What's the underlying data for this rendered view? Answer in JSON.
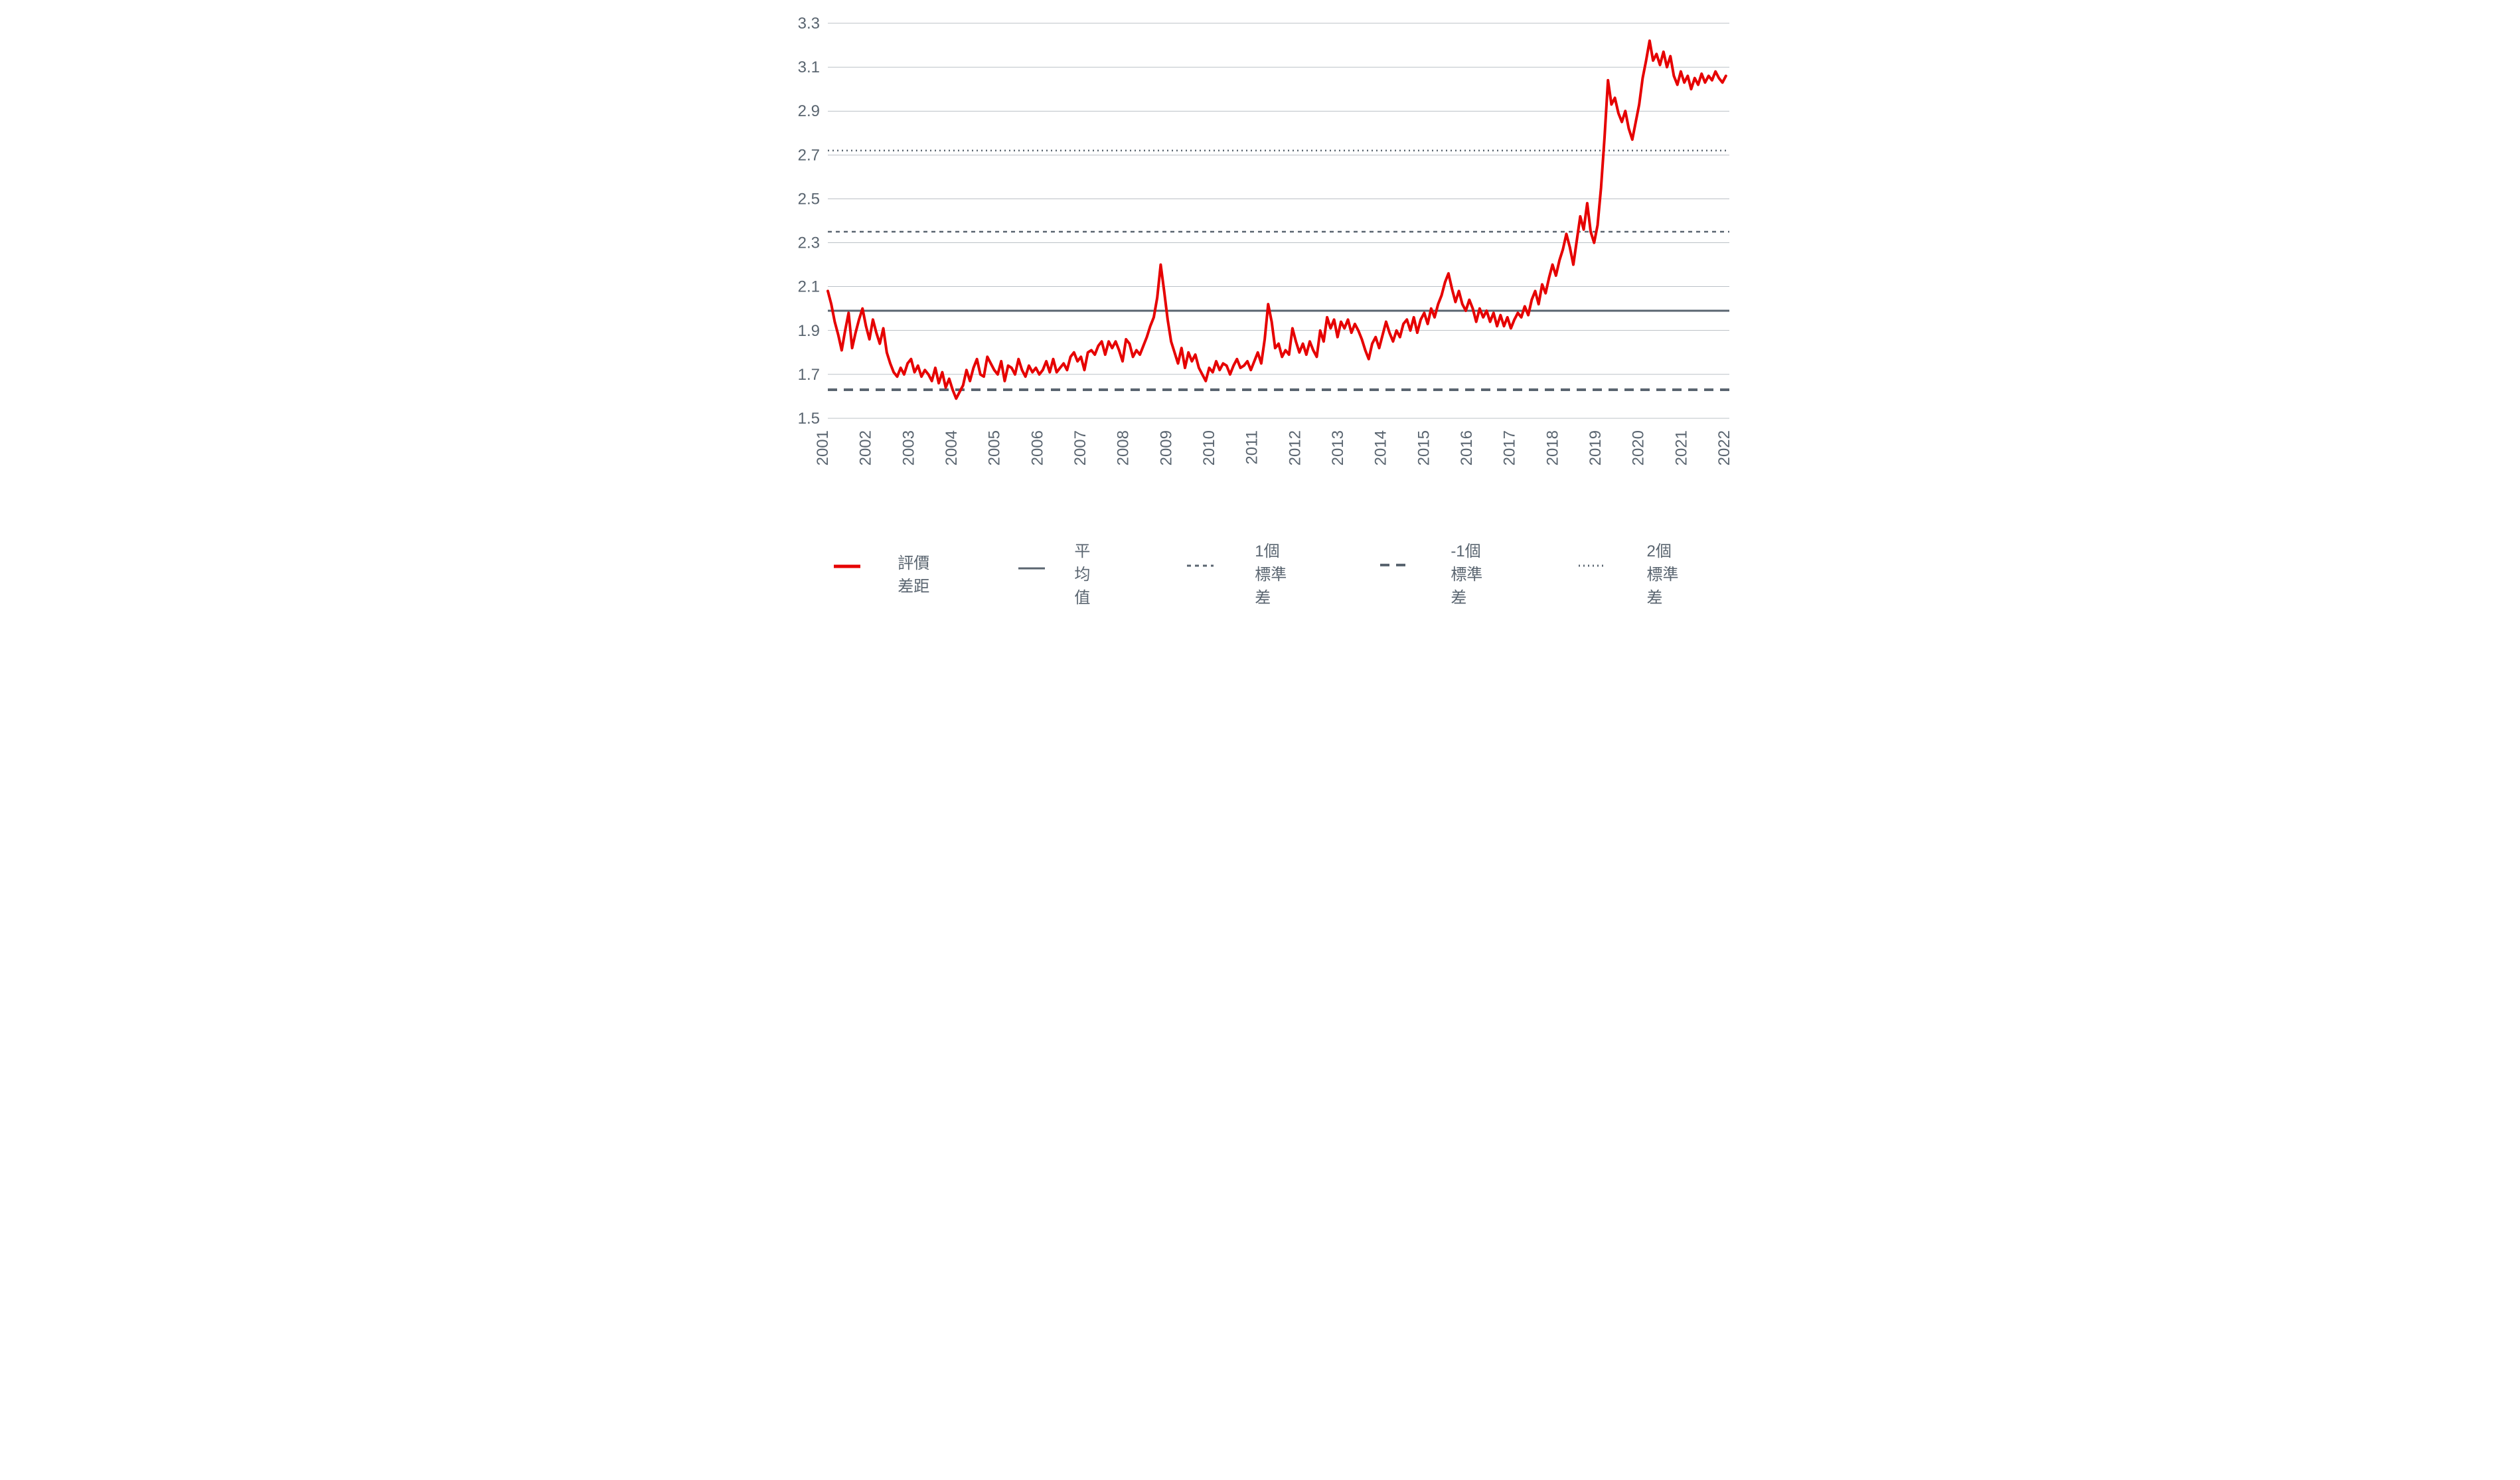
{
  "chart": {
    "type": "line",
    "ylim": [
      1.5,
      3.3
    ],
    "ytick_step": 0.2,
    "yticks": [
      1.5,
      1.7,
      1.9,
      2.1,
      2.3,
      2.5,
      2.7,
      2.9,
      3.1,
      3.3
    ],
    "xticks": [
      "2001",
      "2002",
      "2003",
      "2004",
      "2005",
      "2006",
      "2007",
      "2008",
      "2009",
      "2010",
      "2011",
      "2012",
      "2013",
      "2014",
      "2015",
      "2016",
      "2017",
      "2018",
      "2019",
      "2020",
      "2021",
      "2022"
    ],
    "x_range": [
      0,
      260
    ],
    "background_color": "#ffffff",
    "grid_color": "#78838e",
    "grid_width": 0.5,
    "axis_label_color": "#5a6570",
    "axis_label_fontsize": 24,
    "reference_lines": {
      "mean": {
        "value": 1.99,
        "color": "#5a6570",
        "width": 3,
        "dash": "none"
      },
      "plus_1sd": {
        "value": 2.35,
        "color": "#5a6570",
        "width": 2.5,
        "dash": "6,6"
      },
      "minus_1sd": {
        "value": 1.63,
        "color": "#5a6570",
        "width": 4,
        "dash": "14,10"
      },
      "plus_2sd": {
        "value": 2.72,
        "color": "#5a6570",
        "width": 2.5,
        "dash": "2,5"
      }
    },
    "main_series": {
      "color": "#e60000",
      "width": 4,
      "values": [
        2.08,
        2.02,
        1.94,
        1.88,
        1.81,
        1.9,
        1.98,
        1.82,
        1.89,
        1.95,
        2.0,
        1.92,
        1.86,
        1.95,
        1.89,
        1.84,
        1.91,
        1.8,
        1.75,
        1.71,
        1.69,
        1.73,
        1.7,
        1.75,
        1.77,
        1.71,
        1.74,
        1.69,
        1.72,
        1.7,
        1.67,
        1.73,
        1.66,
        1.71,
        1.64,
        1.68,
        1.63,
        1.59,
        1.62,
        1.65,
        1.72,
        1.67,
        1.73,
        1.77,
        1.7,
        1.69,
        1.78,
        1.75,
        1.72,
        1.7,
        1.76,
        1.67,
        1.74,
        1.73,
        1.7,
        1.77,
        1.72,
        1.69,
        1.74,
        1.71,
        1.73,
        1.7,
        1.72,
        1.76,
        1.71,
        1.77,
        1.71,
        1.73,
        1.75,
        1.72,
        1.78,
        1.8,
        1.76,
        1.78,
        1.72,
        1.8,
        1.81,
        1.79,
        1.83,
        1.85,
        1.79,
        1.85,
        1.82,
        1.85,
        1.81,
        1.76,
        1.86,
        1.84,
        1.78,
        1.81,
        1.79,
        1.83,
        1.87,
        1.92,
        1.96,
        2.05,
        2.2,
        2.08,
        1.95,
        1.85,
        1.8,
        1.75,
        1.82,
        1.73,
        1.8,
        1.76,
        1.79,
        1.73,
        1.7,
        1.67,
        1.73,
        1.71,
        1.76,
        1.72,
        1.75,
        1.74,
        1.7,
        1.74,
        1.77,
        1.73,
        1.74,
        1.76,
        1.72,
        1.76,
        1.8,
        1.75,
        1.86,
        2.02,
        1.94,
        1.82,
        1.84,
        1.78,
        1.81,
        1.79,
        1.91,
        1.85,
        1.8,
        1.84,
        1.79,
        1.85,
        1.81,
        1.78,
        1.9,
        1.85,
        1.96,
        1.91,
        1.95,
        1.87,
        1.94,
        1.91,
        1.95,
        1.89,
        1.93,
        1.9,
        1.86,
        1.81,
        1.77,
        1.84,
        1.87,
        1.82,
        1.88,
        1.94,
        1.89,
        1.85,
        1.9,
        1.87,
        1.93,
        1.95,
        1.9,
        1.96,
        1.89,
        1.95,
        1.98,
        1.93,
        2.0,
        1.96,
        2.02,
        2.06,
        2.12,
        2.16,
        2.09,
        2.03,
        2.08,
        2.02,
        1.99,
        2.04,
        2.0,
        1.94,
        2.0,
        1.96,
        1.99,
        1.94,
        1.98,
        1.92,
        1.97,
        1.92,
        1.96,
        1.91,
        1.95,
        1.98,
        1.96,
        2.01,
        1.97,
        2.04,
        2.08,
        2.02,
        2.11,
        2.07,
        2.14,
        2.2,
        2.15,
        2.22,
        2.27,
        2.34,
        2.28,
        2.2,
        2.31,
        2.42,
        2.36,
        2.48,
        2.35,
        2.3,
        2.38,
        2.55,
        2.78,
        3.04,
        2.93,
        2.96,
        2.89,
        2.85,
        2.9,
        2.82,
        2.77,
        2.85,
        2.93,
        3.05,
        3.13,
        3.22,
        3.13,
        3.16,
        3.11,
        3.17,
        3.1,
        3.15,
        3.06,
        3.02,
        3.08,
        3.03,
        3.06,
        3.0,
        3.05,
        3.02,
        3.07,
        3.03,
        3.06,
        3.04,
        3.08,
        3.05,
        3.03,
        3.06
      ]
    }
  },
  "legend": {
    "items": [
      {
        "label": "評價差距",
        "color": "#e60000",
        "dash": "none",
        "width": 5
      },
      {
        "label": "平均值",
        "color": "#5a6570",
        "dash": "none",
        "width": 3
      },
      {
        "label": "1個標準差",
        "color": "#5a6570",
        "dash": "6,6",
        "width": 3
      },
      {
        "label": "-1個標準差",
        "color": "#5a6570",
        "dash": "14,10",
        "width": 4
      },
      {
        "label": "2個標準差",
        "color": "#5a6570",
        "dash": "2,5",
        "width": 3
      }
    ]
  }
}
